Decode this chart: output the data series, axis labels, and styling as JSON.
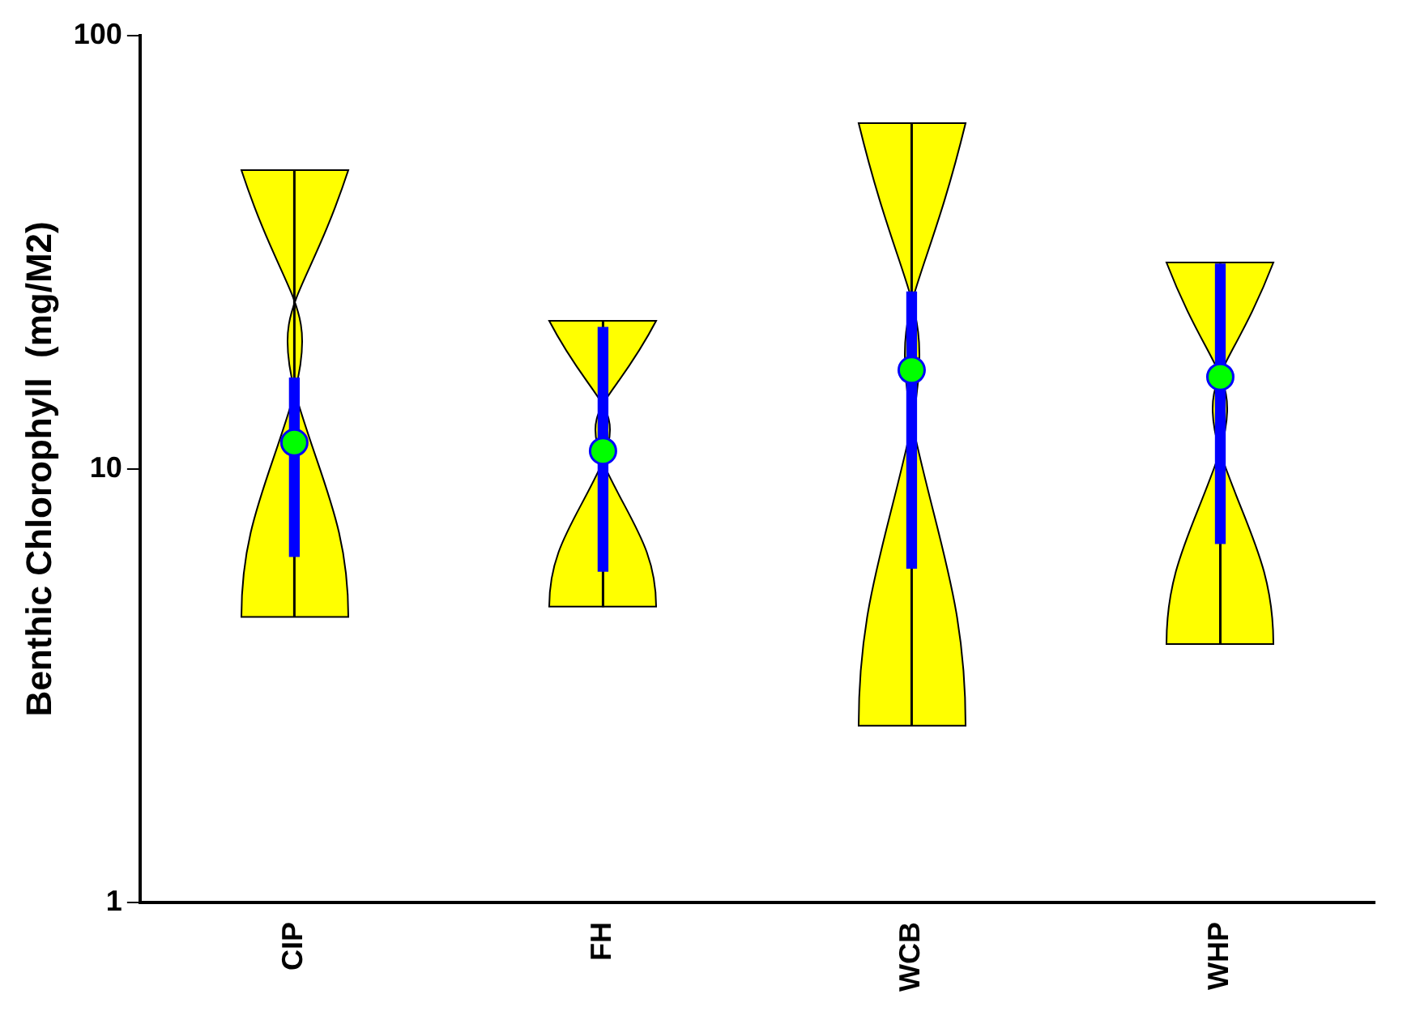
{
  "chart_data": {
    "type": "box",
    "ylabel": "Benthic Chlorophyll  (mg/M2)",
    "categories": [
      "CIP",
      "FH",
      "WCB",
      "WHP"
    ],
    "series": [
      {
        "color": "#0000ff",
        "boxes": [
          {
            "low": 4.56,
            "q1": 6.28,
            "median": 11.5,
            "q3": 16.2,
            "high": 48.9
          },
          {
            "low": 4.8,
            "q1": 5.81,
            "median": 11.0,
            "q3": 21.2,
            "high": 21.9
          },
          {
            "low": 2.56,
            "q1": 5.9,
            "median": 16.9,
            "q3": 25.6,
            "high": 62.8
          },
          {
            "low": 3.94,
            "q1": 6.73,
            "median": 16.3,
            "q3": 29.7,
            "high": 29.9
          }
        ]
      }
    ],
    "log": true,
    "ylim": [
      1,
      100
    ],
    "yticks": [
      1,
      10,
      100
    ],
    "grid": false,
    "legend": false
  }
}
